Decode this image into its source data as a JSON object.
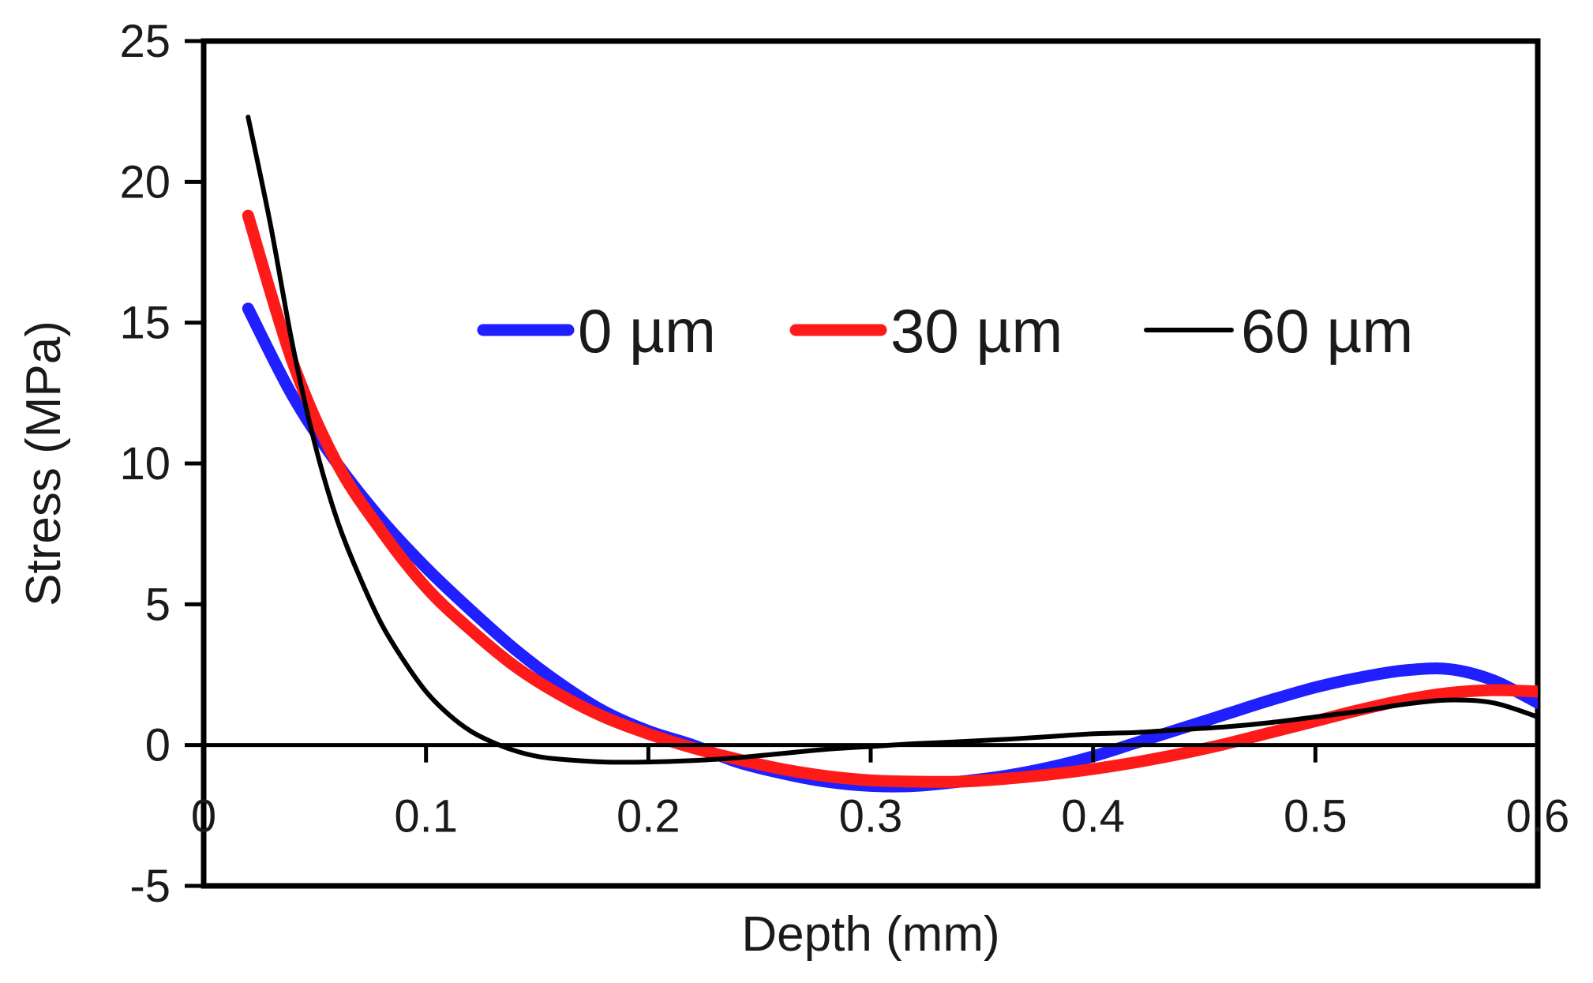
{
  "chart_data": {
    "type": "line",
    "title": "",
    "xlabel": "Depth (mm)",
    "ylabel": "Stress (MPa)",
    "xlim": [
      0,
      0.6
    ],
    "ylim": [
      -5,
      25
    ],
    "x_ticks": [
      0,
      0.1,
      0.2,
      0.3,
      0.4,
      0.5,
      0.6
    ],
    "x_tick_labels": [
      "0",
      "0.1",
      "0.2",
      "0.3",
      "0.4",
      "0.5",
      "0.6"
    ],
    "y_ticks": [
      -5,
      0,
      5,
      10,
      15,
      20,
      25
    ],
    "y_tick_labels": [
      "-5",
      "0",
      "5",
      "10",
      "15",
      "20",
      "25"
    ],
    "grid": false,
    "legend_position": "upper-right",
    "series": [
      {
        "name": "0 µm",
        "label": "0 µm",
        "color": "#1f1fff",
        "line_weight": "thick",
        "x": [
          0.02,
          0.04,
          0.06,
          0.08,
          0.1,
          0.12,
          0.14,
          0.16,
          0.18,
          0.2,
          0.22,
          0.24,
          0.26,
          0.28,
          0.3,
          0.32,
          0.34,
          0.36,
          0.38,
          0.4,
          0.42,
          0.44,
          0.46,
          0.48,
          0.5,
          0.52,
          0.54,
          0.56,
          0.58,
          0.6
        ],
        "y": [
          15.5,
          12.4,
          10.0,
          8.0,
          6.3,
          4.8,
          3.4,
          2.2,
          1.2,
          0.5,
          0.0,
          -0.6,
          -1.0,
          -1.3,
          -1.45,
          -1.45,
          -1.3,
          -1.1,
          -0.8,
          -0.4,
          0.1,
          0.6,
          1.1,
          1.6,
          2.05,
          2.4,
          2.65,
          2.7,
          2.3,
          1.5
        ]
      },
      {
        "name": "30 µm",
        "label": "30 µm",
        "color": "#ff1a1a",
        "line_weight": "thick",
        "x": [
          0.02,
          0.04,
          0.06,
          0.08,
          0.1,
          0.12,
          0.14,
          0.16,
          0.18,
          0.2,
          0.22,
          0.24,
          0.26,
          0.28,
          0.3,
          0.32,
          0.34,
          0.36,
          0.38,
          0.4,
          0.42,
          0.44,
          0.46,
          0.48,
          0.5,
          0.52,
          0.54,
          0.56,
          0.58,
          0.6
        ],
        "y": [
          18.8,
          13.6,
          10.0,
          7.6,
          5.6,
          4.1,
          2.8,
          1.8,
          1.0,
          0.4,
          -0.1,
          -0.5,
          -0.85,
          -1.1,
          -1.25,
          -1.3,
          -1.3,
          -1.2,
          -1.05,
          -0.85,
          -0.6,
          -0.3,
          0.05,
          0.45,
          0.85,
          1.25,
          1.6,
          1.85,
          1.95,
          1.9
        ]
      },
      {
        "name": "60 µm",
        "label": "60 µm",
        "color": "#000000",
        "line_weight": "thin",
        "x": [
          0.02,
          0.03,
          0.04,
          0.05,
          0.06,
          0.07,
          0.08,
          0.09,
          0.1,
          0.11,
          0.12,
          0.13,
          0.14,
          0.15,
          0.16,
          0.18,
          0.2,
          0.22,
          0.24,
          0.26,
          0.28,
          0.3,
          0.32,
          0.34,
          0.36,
          0.38,
          0.4,
          0.42,
          0.44,
          0.46,
          0.48,
          0.5,
          0.52,
          0.54,
          0.56,
          0.58,
          0.6
        ],
        "y": [
          22.3,
          18.5,
          14.2,
          10.7,
          8.0,
          6.0,
          4.3,
          3.0,
          1.9,
          1.1,
          0.5,
          0.1,
          -0.2,
          -0.4,
          -0.5,
          -0.6,
          -0.6,
          -0.55,
          -0.45,
          -0.3,
          -0.15,
          -0.05,
          0.05,
          0.12,
          0.2,
          0.3,
          0.4,
          0.45,
          0.55,
          0.65,
          0.8,
          1.0,
          1.2,
          1.45,
          1.6,
          1.5,
          1.0
        ]
      }
    ]
  }
}
